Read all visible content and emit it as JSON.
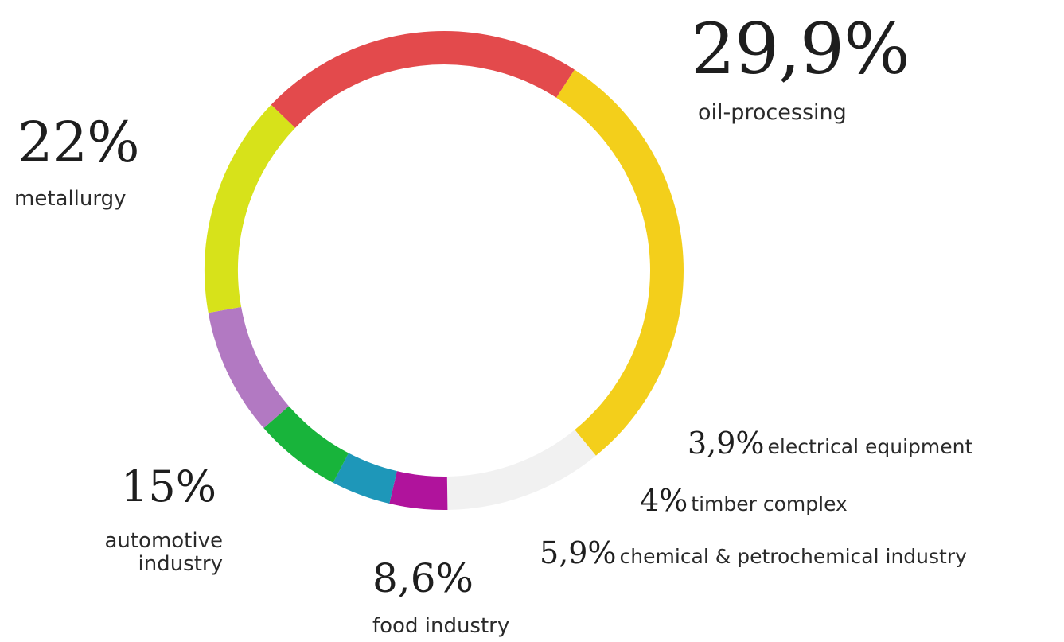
{
  "chart_data": {
    "type": "pie",
    "donut": true,
    "title": "",
    "slices": [
      {
        "key": "oil",
        "value": 29.9,
        "value_label": "29,9%",
        "label": "oil-processing",
        "color": "#f3cf1b"
      },
      {
        "key": "other",
        "value": 10.7,
        "value_label": "",
        "label": "",
        "color": "#f1f1f1"
      },
      {
        "key": "elec",
        "value": 3.9,
        "value_label": "3,9%",
        "label": "electrical equipment",
        "color": "#b0139c"
      },
      {
        "key": "timber",
        "value": 4,
        "value_label": "4%",
        "label": "timber complex",
        "color": "#1e97b9"
      },
      {
        "key": "chem",
        "value": 5.9,
        "value_label": "5,9%",
        "label": "chemical & petrochemical industry",
        "color": "#18b43b"
      },
      {
        "key": "food",
        "value": 8.6,
        "value_label": "8,6%",
        "label": "food industry",
        "color": "#b279c2"
      },
      {
        "key": "auto",
        "value": 15,
        "value_label": "15%",
        "label": "automotive\nindustry",
        "color": "#d7e21a"
      },
      {
        "key": "met",
        "value": 22,
        "value_label": "22%",
        "label": "metallurgy",
        "color": "#e34a4c"
      }
    ],
    "start_angle_deg": -57,
    "direction": "clockwise"
  }
}
